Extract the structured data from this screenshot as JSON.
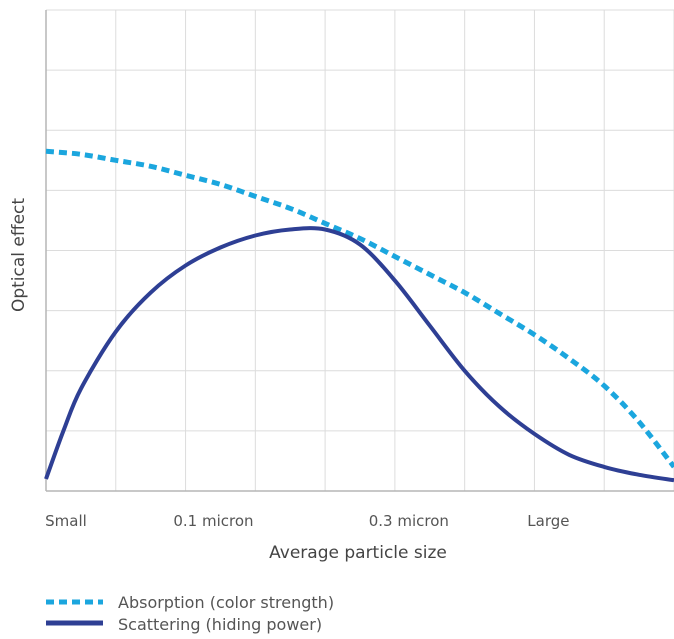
{
  "chart_data": {
    "type": "line",
    "title": "",
    "xlabel": "Average particle size",
    "ylabel": "Optical effect",
    "x_tick_labels": [
      {
        "label": "Small",
        "x": 0
      },
      {
        "label": "0.1 micron",
        "x": 2.4
      },
      {
        "label": "0.3 micron",
        "x": 5.2
      },
      {
        "label": "Large",
        "x": 7.2
      }
    ],
    "xlim": [
      0,
      9
    ],
    "ylim": [
      0,
      8
    ],
    "grid": true,
    "legend_position": "bottom-left",
    "series": [
      {
        "name": "Absorption (color strength)",
        "style": "dashed",
        "color": "#1BA6DE",
        "x": [
          0,
          0.5,
          1,
          1.5,
          2,
          2.5,
          3,
          3.5,
          4,
          4.5,
          5,
          5.5,
          6,
          6.5,
          7,
          7.5,
          8,
          8.5,
          9
        ],
        "y": [
          5.65,
          5.6,
          5.5,
          5.4,
          5.25,
          5.1,
          4.9,
          4.7,
          4.45,
          4.2,
          3.9,
          3.6,
          3.3,
          2.95,
          2.6,
          2.2,
          1.75,
          1.15,
          0.4
        ]
      },
      {
        "name": "Scattering (hiding power)",
        "style": "solid",
        "color": "#2E3F94",
        "x": [
          0,
          0.25,
          0.5,
          1,
          1.5,
          2,
          2.5,
          3,
          3.5,
          4,
          4.5,
          5,
          5.5,
          6,
          6.5,
          7,
          7.5,
          8,
          8.5,
          9
        ],
        "y": [
          0.2,
          1.0,
          1.7,
          2.65,
          3.3,
          3.75,
          4.05,
          4.25,
          4.35,
          4.35,
          4.1,
          3.5,
          2.75,
          2.0,
          1.4,
          0.95,
          0.6,
          0.4,
          0.27,
          0.18
        ]
      }
    ]
  }
}
